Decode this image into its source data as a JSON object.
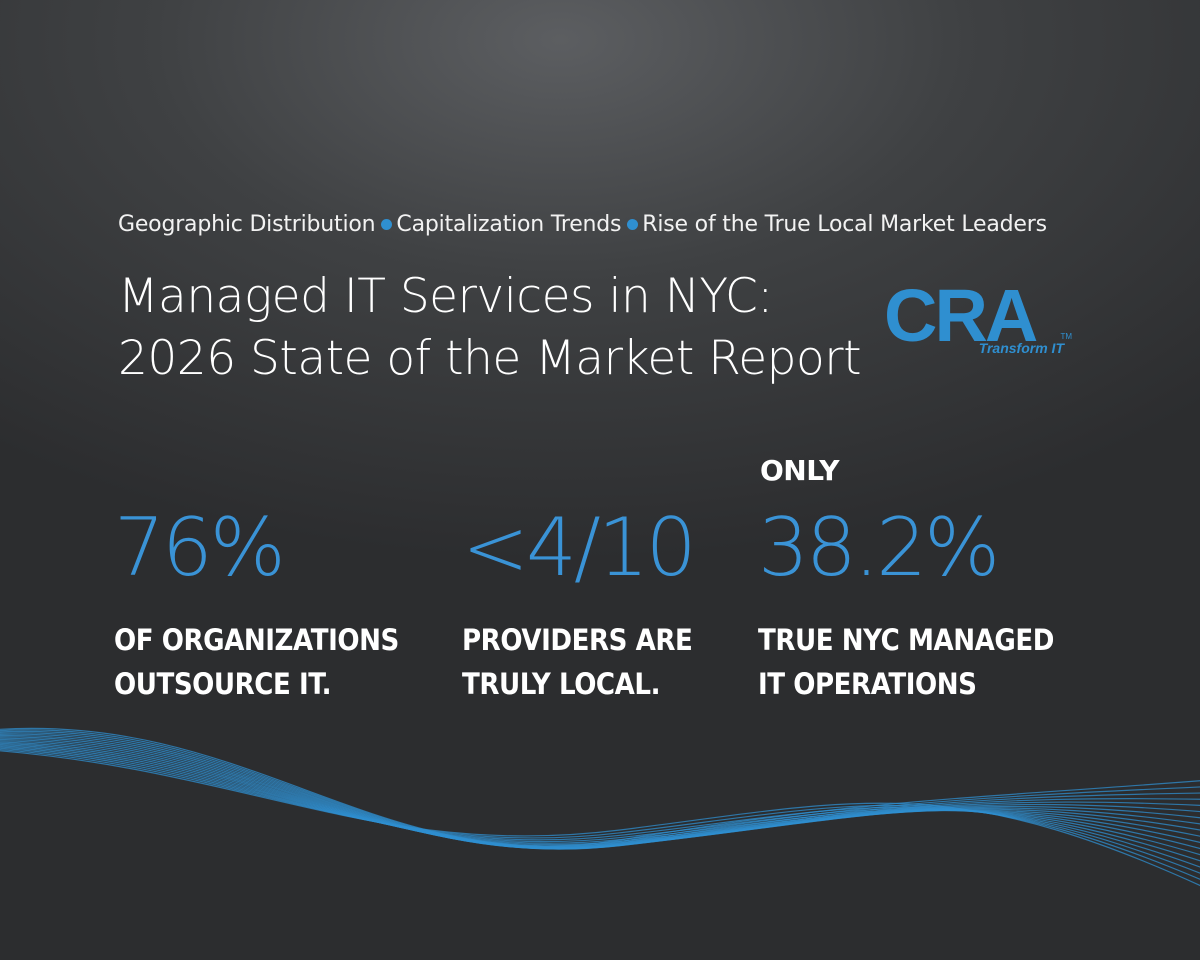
{
  "header": {
    "tagline_items": [
      "Geographic Distribution",
      "Capitalization Trends",
      "Rise of the True Local Market Leaders"
    ],
    "title_line1": "Managed IT Services in NYC:",
    "title_line2": "2026 State of the Market Report"
  },
  "logo": {
    "wordmark": "CRA",
    "tagline": "Transform IT",
    "trademark": "TM"
  },
  "stats": [
    {
      "prefix": "",
      "value": "76%",
      "desc_line1": "OF ORGANIZATIONS",
      "desc_line2": "OUTSOURCE IT."
    },
    {
      "prefix": "",
      "value": "<4/10",
      "desc_line1": "PROVIDERS ARE",
      "desc_line2": "TRULY LOCAL."
    },
    {
      "prefix": "ONLY",
      "value": "38.2%",
      "desc_line1": "TRUE NYC MANAGED",
      "desc_line2": "IT OPERATIONS"
    }
  ],
  "colors": {
    "accent": "#3a93d6",
    "background": "#3a3b3d",
    "text": "#ffffff",
    "wave": "#2f8fd0"
  }
}
